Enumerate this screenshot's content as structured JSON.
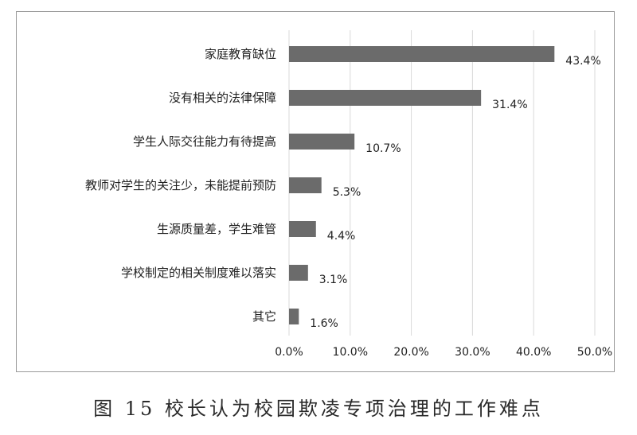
{
  "chart_data": {
    "type": "bar",
    "orientation": "horizontal",
    "categories": [
      "家庭教育缺位",
      "没有相关的法律保障",
      "学生人际交往能力有待提高",
      "教师对学生的关注少，未能提前预防",
      "生源质量差，学生难管",
      "学校制定的相关制度难以落实",
      "其它"
    ],
    "values": [
      43.4,
      31.4,
      10.7,
      5.3,
      4.4,
      3.1,
      1.6
    ],
    "value_labels": [
      "43.4%",
      "31.4%",
      "10.7%",
      "5.3%",
      "4.4%",
      "3.1%",
      "1.6%"
    ],
    "xlim": [
      0,
      50
    ],
    "xticks": [
      "0.0%",
      "10.0%",
      "20.0%",
      "30.0%",
      "40.0%",
      "50.0%"
    ],
    "grid": "vertical",
    "bar_color": "#6b6b6b",
    "grid_color": "#d9d9d9"
  },
  "caption": "图 15  校长认为校园欺凌专项治理的工作难点"
}
